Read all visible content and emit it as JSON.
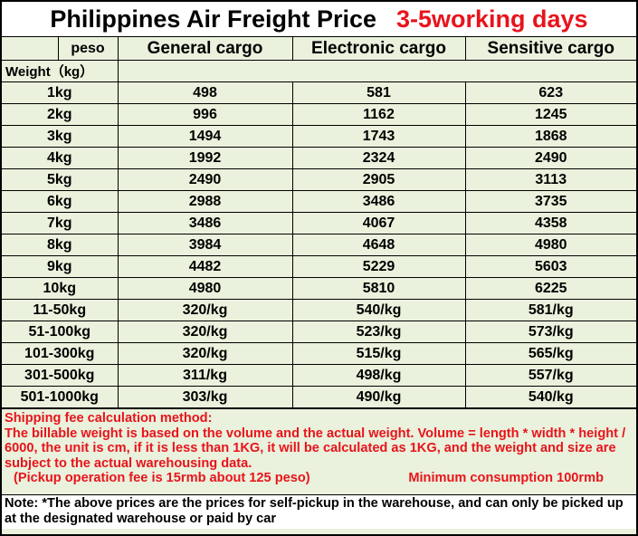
{
  "title": "Philippines Air Freight Price",
  "title_highlight": "3-5working days",
  "header": {
    "currency": "peso",
    "columns": [
      "General cargo",
      "Electronic cargo",
      "Sensitive cargo"
    ]
  },
  "weight_label": "Weight（kg）",
  "rows": [
    {
      "weight": "1kg",
      "values": [
        "498",
        "581",
        "623"
      ]
    },
    {
      "weight": "2kg",
      "values": [
        "996",
        "1162",
        "1245"
      ]
    },
    {
      "weight": "3kg",
      "values": [
        "1494",
        "1743",
        "1868"
      ]
    },
    {
      "weight": "4kg",
      "values": [
        "1992",
        "2324",
        "2490"
      ]
    },
    {
      "weight": "5kg",
      "values": [
        "2490",
        "2905",
        "3113"
      ]
    },
    {
      "weight": "6kg",
      "values": [
        "2988",
        "3486",
        "3735"
      ]
    },
    {
      "weight": "7kg",
      "values": [
        "3486",
        "4067",
        "4358"
      ]
    },
    {
      "weight": "8kg",
      "values": [
        "3984",
        "4648",
        "4980"
      ]
    },
    {
      "weight": "9kg",
      "values": [
        "4482",
        "5229",
        "5603"
      ]
    },
    {
      "weight": "10kg",
      "values": [
        "4980",
        "5810",
        "6225"
      ]
    },
    {
      "weight": "11-50kg",
      "values": [
        "320/kg",
        "540/kg",
        "581/kg"
      ]
    },
    {
      "weight": "51-100kg",
      "values": [
        "320/kg",
        "523/kg",
        "573/kg"
      ]
    },
    {
      "weight": "101-300kg",
      "values": [
        "320/kg",
        "515/kg",
        "565/kg"
      ]
    },
    {
      "weight": "301-500kg",
      "values": [
        "311/kg",
        "498/kg",
        "557/kg"
      ]
    },
    {
      "weight": "501-1000kg",
      "values": [
        "303/kg",
        "490/kg",
        "540/kg"
      ]
    }
  ],
  "method": {
    "heading": "Shipping fee calculation method:",
    "body": "The billable weight is based on the volume and the actual weight. Volume = length * width * height / 6000, the unit is cm, if it is less than 1KG, it will be calculated as 1KG, and the weight and size are subject to the actual warehousing data.",
    "pickup_fee": "(Pickup operation fee is 15rmb about 125 peso)",
    "minimum": "Minimum consumption 100rmb"
  },
  "note": "Note: *The above prices are the prices for self-pickup in the warehouse, and can only be picked up at the designated warehouse or paid by car",
  "colors": {
    "accent_red": "#e8141c",
    "table_background": "#eaf1dc",
    "border": "#000000"
  }
}
